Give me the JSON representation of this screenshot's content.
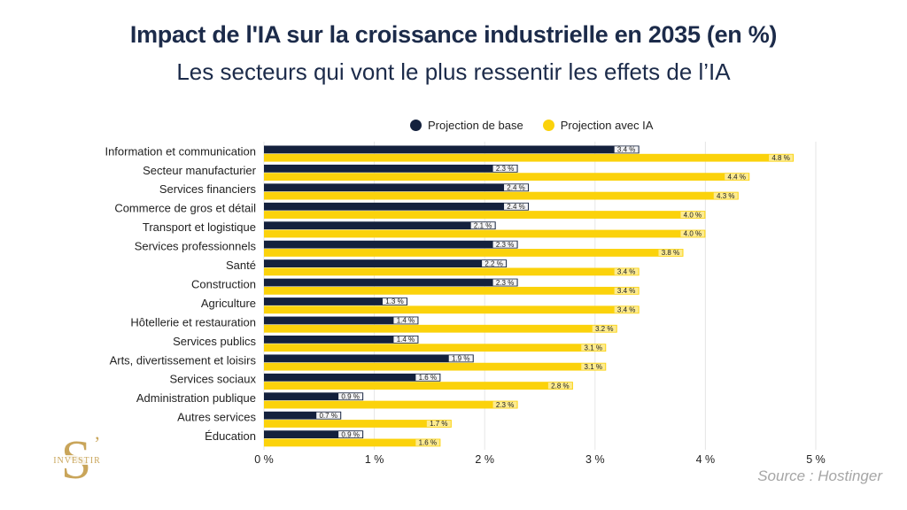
{
  "chart_data": {
    "type": "bar",
    "orientation": "horizontal",
    "title": "Impact de l'IA sur la croissance industrielle en 2035 (en %)",
    "subtitle": "Les secteurs qui vont le plus ressentir les effets de l’IA",
    "categories": [
      "Information et communication",
      "Secteur manufacturier",
      "Services financiers",
      "Commerce de gros et détail",
      "Transport et logistique",
      "Services professionnels",
      "Santé",
      "Construction",
      "Agriculture",
      "Hôtellerie et restauration",
      "Services publics",
      "Arts, divertissement et loisirs",
      "Services sociaux",
      "Administration publique",
      "Autres services",
      "Éducation"
    ],
    "series": [
      {
        "name": "Projection de base",
        "color": "#14213d",
        "values": [
          3.4,
          2.3,
          2.4,
          2.4,
          2.1,
          2.3,
          2.2,
          2.3,
          1.3,
          1.4,
          1.4,
          1.9,
          1.6,
          0.9,
          0.7,
          0.9
        ],
        "labels": [
          "3.4 %",
          "2.3 %",
          "2.4 %",
          "2.4 %",
          "2.1 %",
          "2.3 %",
          "2.2 %",
          "2.3 %",
          "1.3 %",
          "1.4 %",
          "1.4 %",
          "1.9 %",
          "1.6 %",
          "0.9 %",
          "0.7 %",
          "0.9 %"
        ]
      },
      {
        "name": "Projection avec IA",
        "color": "#fbd20b",
        "values": [
          4.8,
          4.4,
          4.3,
          4.0,
          4.0,
          3.8,
          3.4,
          3.4,
          3.4,
          3.2,
          3.1,
          3.1,
          2.8,
          2.3,
          1.7,
          1.6
        ],
        "labels": [
          "4.8 %",
          "4.4 %",
          "4.3 %",
          "4.0 %",
          "4.0 %",
          "3.8 %",
          "3.4 %",
          "3.4 %",
          "3.4 %",
          "3.2 %",
          "3.1 %",
          "3.1 %",
          "2.8 %",
          "2.3 %",
          "1.7 %",
          "1.6 %"
        ]
      }
    ],
    "xlim": [
      0,
      5
    ],
    "xticks": [
      0,
      1,
      2,
      3,
      4,
      5
    ],
    "xtick_labels": [
      "0 %",
      "1 %",
      "2 %",
      "3 %",
      "4 %",
      "5 %"
    ],
    "grid": true,
    "legend_position": "top-center"
  },
  "source": "Source : Hostinger",
  "logo": {
    "big_letter": "S",
    "apostrophe": "’",
    "text": "INVESTIR",
    "color": "#c9a55a"
  }
}
